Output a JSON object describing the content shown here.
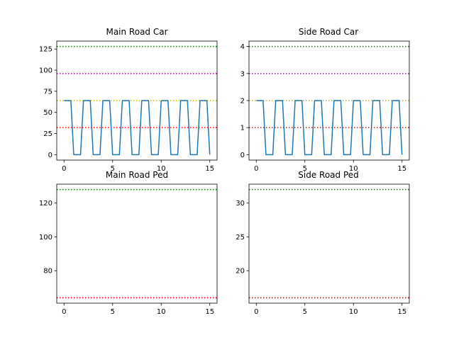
{
  "figure": {
    "background": "#ffffff"
  },
  "chart_data": [
    {
      "type": "line",
      "title": "Main Road Car",
      "xlabel": "",
      "ylabel": "",
      "xlim": [
        -0.75,
        15.75
      ],
      "ylim": [
        -6.4,
        134.4
      ],
      "xticks": [
        0,
        5,
        10,
        15
      ],
      "yticks": [
        0,
        25,
        50,
        75,
        100,
        125
      ],
      "grid": false,
      "series": [
        {
          "color": "#1f77b4",
          "x": [
            0,
            0.3,
            0.7,
            1.0,
            1.3,
            1.7,
            2.0,
            2.3,
            2.7,
            3.0,
            3.3,
            3.7,
            4.0,
            4.3,
            4.7,
            5.0,
            5.3,
            5.7,
            6.0,
            6.3,
            6.7,
            7.0,
            7.3,
            7.7,
            8.0,
            8.3,
            8.7,
            9.0,
            9.3,
            9.7,
            10.0,
            10.3,
            10.7,
            11.0,
            11.3,
            11.7,
            12.0,
            12.3,
            12.7,
            13.0,
            13.3,
            13.7,
            14.0,
            14.3,
            14.7,
            15.0
          ],
          "y": [
            64,
            64,
            64,
            0,
            0,
            0,
            64,
            64,
            64,
            0,
            0,
            0,
            64,
            64,
            64,
            0,
            0,
            0,
            64,
            64,
            64,
            0,
            0,
            0,
            64,
            64,
            64,
            0,
            0,
            0,
            64,
            64,
            64,
            0,
            0,
            0,
            64,
            64,
            64,
            0,
            0,
            0,
            64,
            64,
            64,
            0
          ]
        }
      ],
      "reference_lines": [
        {
          "y": 128,
          "color": "#008000"
        },
        {
          "y": 96,
          "color": "#c000c0"
        },
        {
          "y": 64,
          "color": "#c0c000"
        },
        {
          "y": 32,
          "color": "#ff0000"
        }
      ]
    },
    {
      "type": "line",
      "title": "Side Road Car",
      "xlabel": "",
      "ylabel": "",
      "xlim": [
        -0.75,
        15.75
      ],
      "ylim": [
        -0.2,
        4.2
      ],
      "xticks": [
        0,
        5,
        10,
        15
      ],
      "yticks": [
        0,
        1,
        2,
        3,
        4
      ],
      "grid": false,
      "series": [
        {
          "color": "#1f77b4",
          "x": [
            0,
            0.3,
            0.7,
            1.0,
            1.3,
            1.7,
            2.0,
            2.3,
            2.7,
            3.0,
            3.3,
            3.7,
            4.0,
            4.3,
            4.7,
            5.0,
            5.3,
            5.7,
            6.0,
            6.3,
            6.7,
            7.0,
            7.3,
            7.7,
            8.0,
            8.3,
            8.7,
            9.0,
            9.3,
            9.7,
            10.0,
            10.3,
            10.7,
            11.0,
            11.3,
            11.7,
            12.0,
            12.3,
            12.7,
            13.0,
            13.3,
            13.7,
            14.0,
            14.3,
            14.7,
            15.0
          ],
          "y": [
            2,
            2,
            2,
            0,
            0,
            0,
            2,
            2,
            2,
            0,
            0,
            0,
            2,
            2,
            2,
            0,
            0,
            0,
            2,
            2,
            2,
            0,
            0,
            0,
            2,
            2,
            2,
            0,
            0,
            0,
            2,
            2,
            2,
            0,
            0,
            0,
            2,
            2,
            2,
            0,
            0,
            0,
            2,
            2,
            2,
            0
          ]
        }
      ],
      "reference_lines": [
        {
          "y": 4,
          "color": "#008000"
        },
        {
          "y": 3,
          "color": "#c000c0"
        },
        {
          "y": 2,
          "color": "#c0c000"
        },
        {
          "y": 1,
          "color": "#ff0000"
        }
      ]
    },
    {
      "type": "line",
      "title": "Main Road Ped",
      "xlabel": "",
      "ylabel": "",
      "xlim": [
        -0.75,
        15.75
      ],
      "ylim": [
        60.8,
        131.2
      ],
      "xticks": [
        0,
        5,
        10,
        15
      ],
      "yticks": [
        80,
        100,
        120
      ],
      "grid": false,
      "series": [],
      "reference_lines": [
        {
          "y": 128,
          "color": "#008000"
        },
        {
          "y": 64,
          "color": "#c000c0"
        },
        {
          "y": 64,
          "color": "#ff0000"
        }
      ]
    },
    {
      "type": "line",
      "title": "Side Road Ped",
      "xlabel": "",
      "ylabel": "",
      "xlim": [
        -0.75,
        15.75
      ],
      "ylim": [
        15.2,
        32.8
      ],
      "xticks": [
        0,
        5,
        10,
        15
      ],
      "yticks": [
        20,
        25,
        30
      ],
      "grid": false,
      "series": [],
      "reference_lines": [
        {
          "y": 32,
          "color": "#008000"
        },
        {
          "y": 16,
          "color": "#c000c0"
        },
        {
          "y": 16,
          "color": "#ff0000"
        }
      ]
    }
  ]
}
